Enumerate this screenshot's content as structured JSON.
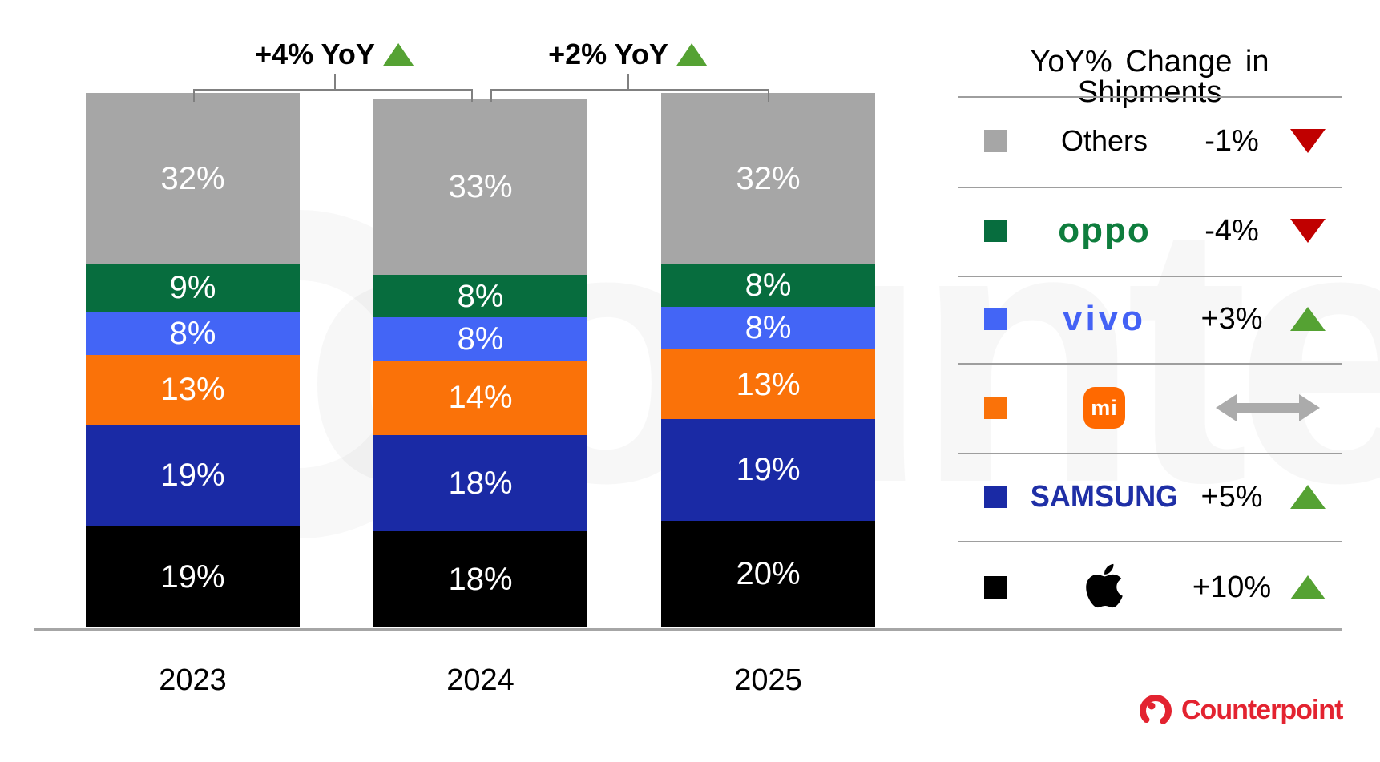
{
  "chart_data": {
    "type": "bar",
    "subtype": "stacked-100",
    "categories": [
      "2023",
      "2024",
      "2025"
    ],
    "series": [
      {
        "name": "Apple",
        "color": "#000000",
        "values": [
          19,
          18,
          20
        ]
      },
      {
        "name": "Samsung",
        "color": "#1a2aa5",
        "values": [
          19,
          18,
          19
        ]
      },
      {
        "name": "Xiaomi",
        "color": "#fa7209",
        "values": [
          13,
          14,
          13
        ]
      },
      {
        "name": "vivo",
        "color": "#4365f6",
        "values": [
          8,
          8,
          8
        ]
      },
      {
        "name": "OPPO",
        "color": "#076d3e",
        "values": [
          9,
          8,
          8
        ]
      },
      {
        "name": "Others",
        "color": "#a6a6a6",
        "values": [
          32,
          33,
          32
        ]
      }
    ],
    "unit": "%",
    "value_suffix": "%",
    "growth_annotations": [
      {
        "label": "+4% YoY",
        "direction": "up",
        "between": [
          "2023",
          "2024"
        ]
      },
      {
        "label": "+2% YoY",
        "direction": "up",
        "between": [
          "2024",
          "2025"
        ]
      }
    ],
    "legend_position": "right",
    "grid": false
  },
  "legend": {
    "title": "YoY% Change in Shipments",
    "rows": [
      {
        "brand": "others",
        "display_text": "Others",
        "change": "-1%",
        "direction": "down",
        "swatch_color": "#a6a6a6"
      },
      {
        "brand": "oppo",
        "display_text": "oppo",
        "change": "-4%",
        "direction": "down",
        "swatch_color": "#076d3e"
      },
      {
        "brand": "vivo",
        "display_text": "vivo",
        "change": "+3%",
        "direction": "up",
        "swatch_color": "#4365f6"
      },
      {
        "brand": "xiaomi",
        "display_text": "mi",
        "change": "",
        "direction": "flat",
        "swatch_color": "#fa7209"
      },
      {
        "brand": "samsung",
        "display_text": "SAMSUNG",
        "change": "+5%",
        "direction": "up",
        "swatch_color": "#1a2aa5"
      },
      {
        "brand": "apple",
        "display_text": "",
        "change": "+10%",
        "direction": "up",
        "swatch_color": "#000000"
      }
    ]
  },
  "colors": {
    "up": "#55a233",
    "down": "#c00000",
    "flat": "#ababab",
    "axis": "#a6a6a6",
    "bracket": "#808080",
    "footer_red": "#e32330"
  },
  "footer": {
    "brand": "Counterpoint"
  },
  "watermark": "counterpoint"
}
